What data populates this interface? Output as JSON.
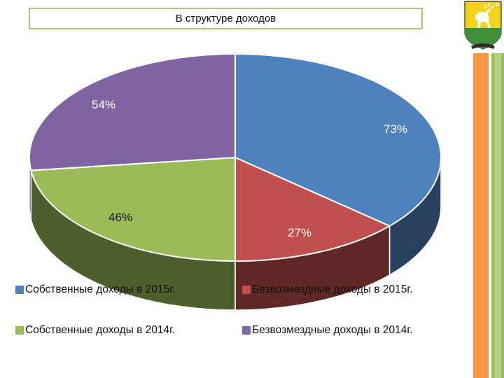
{
  "header": {
    "title": "В структуре доходов"
  },
  "colors": {
    "own_2015": "#4f81bd",
    "gratuitous_2015": "#c0504d",
    "own_2014": "#9bbb59",
    "gratuitous_2014": "#8064a2",
    "title_border": "#a9c57a",
    "stripe_orange": "#f79646",
    "stripe_green": "#9bbb59"
  },
  "chart_data": {
    "type": "pie",
    "style": "3d-double-ring",
    "title": "В структуре доходов",
    "series": [
      {
        "name": "2015",
        "slices": [
          {
            "label": "Собственные доходы в 2015г.",
            "value": 73,
            "display": "73%",
            "color": "#4f81bd"
          },
          {
            "label": "Безвозмездные доходы в 2015г.",
            "value": 27,
            "display": "27%",
            "color": "#c0504d"
          }
        ]
      },
      {
        "name": "2014",
        "slices": [
          {
            "label": "Собственные доходы в 2014г.",
            "value": 46,
            "display": "46%",
            "color": "#9bbb59"
          },
          {
            "label": "Безвозмездные доходы в 2014г.",
            "value": 54,
            "display": "54%",
            "color": "#8064a2"
          }
        ]
      }
    ],
    "legend": {
      "placement": "bottom",
      "entries": [
        {
          "label": "Собственные доходы в 2015г.",
          "color": "#4f81bd"
        },
        {
          "label": "Безвозмездные доходы в 2015г.",
          "color": "#c0504d"
        },
        {
          "label": "Собственные доходы в 2014г.",
          "color": "#9bbb59"
        },
        {
          "label": "Безвозмездные доходы в 2014г.",
          "color": "#8064a2"
        }
      ]
    }
  }
}
